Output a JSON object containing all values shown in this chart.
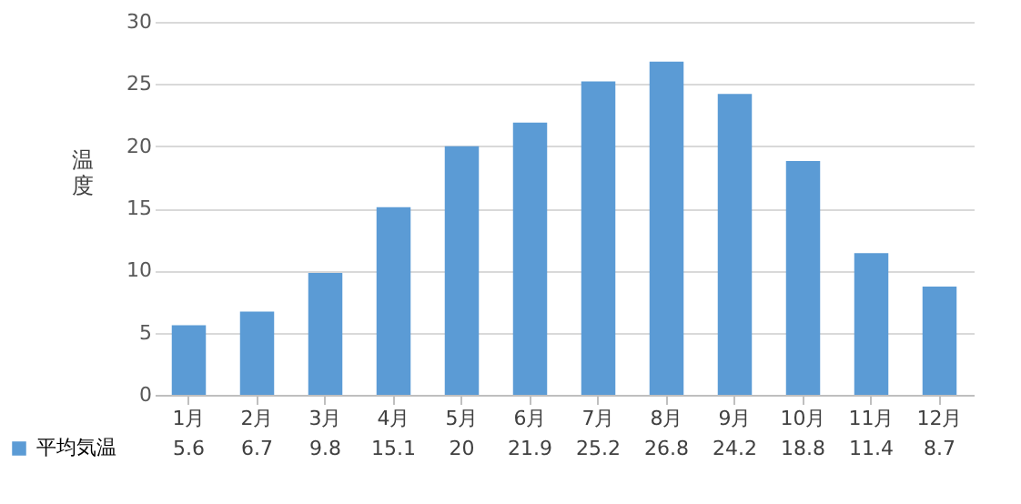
{
  "chart_data": {
    "type": "bar",
    "ylabel": "温度",
    "categories": [
      "1月",
      "2月",
      "3月",
      "4月",
      "5月",
      "6月",
      "7月",
      "8月",
      "9月",
      "10月",
      "11月",
      "12月"
    ],
    "series": [
      {
        "name": "平均気温",
        "color": "#5b9bd5",
        "values": [
          5.6,
          6.7,
          9.8,
          15.1,
          20,
          21.9,
          25.2,
          26.8,
          24.2,
          18.8,
          11.4,
          8.7
        ]
      }
    ],
    "ylim": [
      0,
      30
    ],
    "yticks": [
      0,
      5,
      10,
      15,
      20,
      25,
      30
    ],
    "grid": "y",
    "legend": "bottom left",
    "data_labels": true
  }
}
